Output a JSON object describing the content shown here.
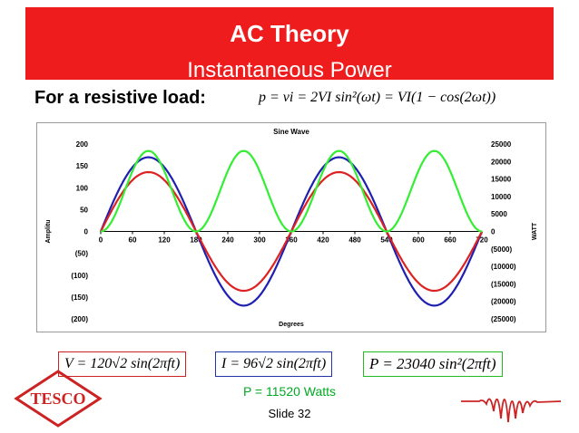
{
  "header": {
    "title": "AC Theory",
    "subtitle": "Instantaneous Power"
  },
  "intro": {
    "label": "For a resistive load:",
    "equation": "p = vi = 2VI sin²(ωt) = VI(1 − cos(2ωt))"
  },
  "formulas": {
    "voltage": "V = 120√2 sin(2πft)",
    "current": "I = 96√2 sin(2πft)",
    "power": "P = 23040 sin²(2πft)"
  },
  "result": "P = 11520 Watts",
  "footer": {
    "slide": "Slide 32",
    "logo_text": "TESCO"
  },
  "colors": {
    "banner": "#ee1c1c",
    "voltage": "#dd2222",
    "current": "#1f1fb0",
    "power": "#33ee33"
  },
  "chart_data": {
    "type": "line",
    "title": "Sine Wave",
    "xlabel": "Degrees",
    "ylabel": "Amplitu",
    "y2label": "WATT",
    "xlim": [
      0,
      720
    ],
    "ylim": [
      -200,
      200
    ],
    "y2lim": [
      -25000,
      25000
    ],
    "xticks": [
      "0",
      "60",
      "120",
      "180",
      "240",
      "300",
      "360",
      "420",
      "480",
      "540",
      "600",
      "660",
      "720"
    ],
    "yticks": [
      "200",
      "150",
      "100",
      "50",
      "0",
      "(50)",
      "(100)",
      "(150)",
      "(200)"
    ],
    "y2ticks": [
      "25000",
      "20000",
      "15000",
      "10000",
      "5000",
      "0",
      "(5000)",
      "(10000)",
      "(15000)",
      "(20000)",
      "(25000)"
    ],
    "grid": false,
    "series": [
      {
        "name": "Voltage",
        "axis": "left",
        "formula": "120·√2·sin(x)",
        "amplitude": 169.7,
        "color": "#1f1fb0"
      },
      {
        "name": "Current",
        "axis": "left",
        "formula": "96·√2·sin(x)",
        "amplitude": 135.8,
        "color": "#dd2222"
      },
      {
        "name": "Power",
        "axis": "right",
        "formula": "23040·sin²(x)",
        "peak": 23040,
        "color": "#33ee33"
      }
    ]
  }
}
